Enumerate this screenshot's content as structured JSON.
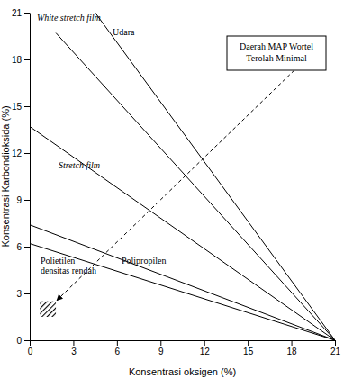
{
  "chart_data": {
    "type": "line",
    "xlabel": "Konsentrasi oksigen (%)",
    "ylabel": "Konsentrasi Karbondioksida (%)",
    "xlim": [
      0,
      21
    ],
    "xticks": [
      0,
      3,
      6,
      9,
      12,
      15,
      18,
      21
    ],
    "ylim": [
      0,
      21
    ],
    "yticks": [
      0,
      3,
      6,
      9,
      12,
      15,
      18,
      21
    ],
    "series": [
      {
        "name": "White stretch film",
        "color": "#000000",
        "x": [
          1.8,
          21
        ],
        "values": [
          19.7,
          0
        ]
      },
      {
        "name": "Udara",
        "color": "#000000",
        "x": [
          4.5,
          21
        ],
        "values": [
          21,
          0
        ]
      },
      {
        "name": "Stretch film",
        "color": "#000000",
        "x": [
          0,
          21
        ],
        "values": [
          13.7,
          0
        ]
      },
      {
        "name": "Polipropilen",
        "color": "#000000",
        "x": [
          0,
          21
        ],
        "values": [
          7.4,
          0
        ]
      },
      {
        "name": "Polietilen densitas rendah",
        "color": "#000000",
        "x": [
          0,
          21
        ],
        "values": [
          6.2,
          0
        ]
      }
    ],
    "region": {
      "x": [
        0.7,
        1.8
      ],
      "y": [
        1.5,
        2.5
      ]
    },
    "annotation": "Daerah MAP Wortel Terolah Minimal"
  }
}
